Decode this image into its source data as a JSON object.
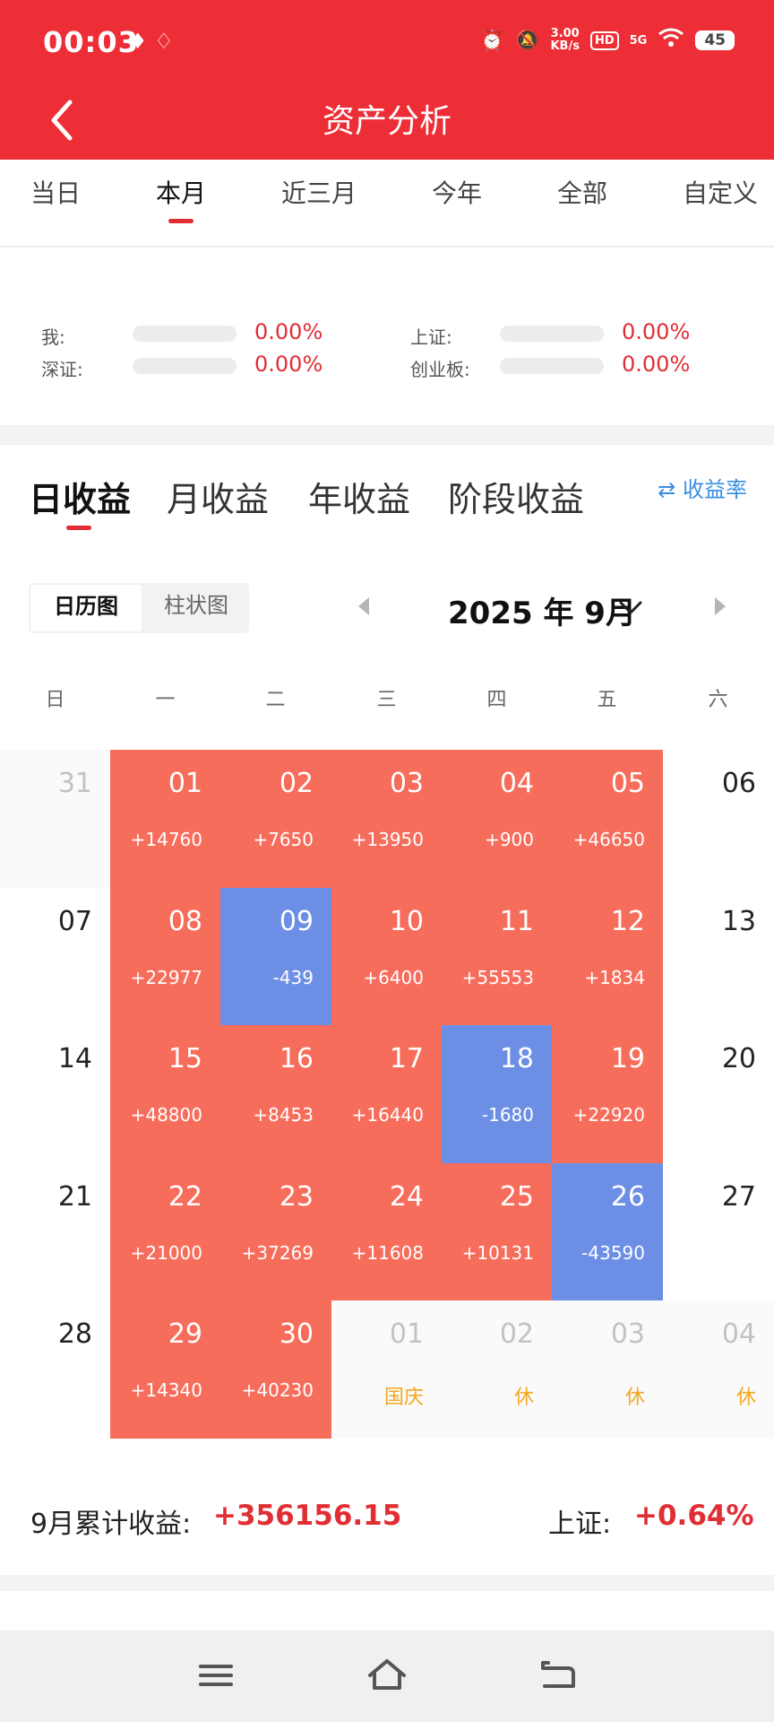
{
  "status_bar": {
    "time": "00:03",
    "net_speed_value": "3.00",
    "net_speed_unit": "KB/s",
    "hd": "HD",
    "network": "5G",
    "battery": "45"
  },
  "header": {
    "title": "资产分析"
  },
  "period_tabs": [
    "当日",
    "本月",
    "近三月",
    "今年",
    "全部",
    "自定义"
  ],
  "active_period_tab": "本月",
  "comparison": [
    {
      "label": "我:",
      "value": "0.00%"
    },
    {
      "label": "上证:",
      "value": "0.00%"
    },
    {
      "label": "深证:",
      "value": "0.00%"
    },
    {
      "label": "创业板:",
      "value": "0.00%"
    }
  ],
  "earnings_tabs": [
    "日收益",
    "月收益",
    "年收益",
    "阶段收益"
  ],
  "active_earnings_tab": "日收益",
  "rate_link": "⇄ 收益率",
  "view_toggle": [
    "日历图",
    "柱状图"
  ],
  "active_view": "日历图",
  "month_selector": "2025 年 9月",
  "weekdays": [
    "日",
    "一",
    "二",
    "三",
    "四",
    "五",
    "六"
  ],
  "calendar": [
    [
      {
        "day": "31",
        "type": "outside"
      },
      {
        "day": "01",
        "value": "+14760",
        "type": "pos"
      },
      {
        "day": "02",
        "value": "+7650",
        "type": "pos"
      },
      {
        "day": "03",
        "value": "+13950",
        "type": "pos"
      },
      {
        "day": "04",
        "value": "+900",
        "type": "pos"
      },
      {
        "day": "05",
        "value": "+46650",
        "type": "pos"
      },
      {
        "day": "06",
        "type": "plain"
      }
    ],
    [
      {
        "day": "07",
        "type": "plain"
      },
      {
        "day": "08",
        "value": "+22977",
        "type": "pos"
      },
      {
        "day": "09",
        "value": "-439",
        "type": "neg"
      },
      {
        "day": "10",
        "value": "+6400",
        "type": "pos"
      },
      {
        "day": "11",
        "value": "+55553",
        "type": "pos"
      },
      {
        "day": "12",
        "value": "+1834",
        "type": "pos"
      },
      {
        "day": "13",
        "type": "plain"
      }
    ],
    [
      {
        "day": "14",
        "type": "plain"
      },
      {
        "day": "15",
        "value": "+48800",
        "type": "pos"
      },
      {
        "day": "16",
        "value": "+8453",
        "type": "pos"
      },
      {
        "day": "17",
        "value": "+16440",
        "type": "pos"
      },
      {
        "day": "18",
        "value": "-1680",
        "type": "neg"
      },
      {
        "day": "19",
        "value": "+22920",
        "type": "pos"
      },
      {
        "day": "20",
        "type": "plain"
      }
    ],
    [
      {
        "day": "21",
        "type": "plain"
      },
      {
        "day": "22",
        "value": "+21000",
        "type": "pos"
      },
      {
        "day": "23",
        "value": "+37269",
        "type": "pos"
      },
      {
        "day": "24",
        "value": "+11608",
        "type": "pos"
      },
      {
        "day": "25",
        "value": "+10131",
        "type": "pos"
      },
      {
        "day": "26",
        "value": "-43590",
        "type": "neg"
      },
      {
        "day": "27",
        "type": "plain"
      }
    ],
    [
      {
        "day": "28",
        "type": "plain"
      },
      {
        "day": "29",
        "value": "+14340",
        "type": "pos"
      },
      {
        "day": "30",
        "value": "+40230",
        "type": "pos"
      },
      {
        "day": "01",
        "holiday": "国庆",
        "type": "outside"
      },
      {
        "day": "02",
        "holiday": "休",
        "type": "outside"
      },
      {
        "day": "03",
        "holiday": "休",
        "type": "outside"
      },
      {
        "day": "04",
        "holiday": "休",
        "type": "outside"
      }
    ]
  ],
  "summary": {
    "total_label": "9月累计收益:",
    "total_value": "+356156.15",
    "index_label": "上证:",
    "index_value": "+0.64%"
  },
  "colors": {
    "brand_red": "#ee2e37",
    "gain": "#f76d5c",
    "loss": "#6c8fe5",
    "holiday": "#f2a71f",
    "link": "#3a8ee0"
  }
}
